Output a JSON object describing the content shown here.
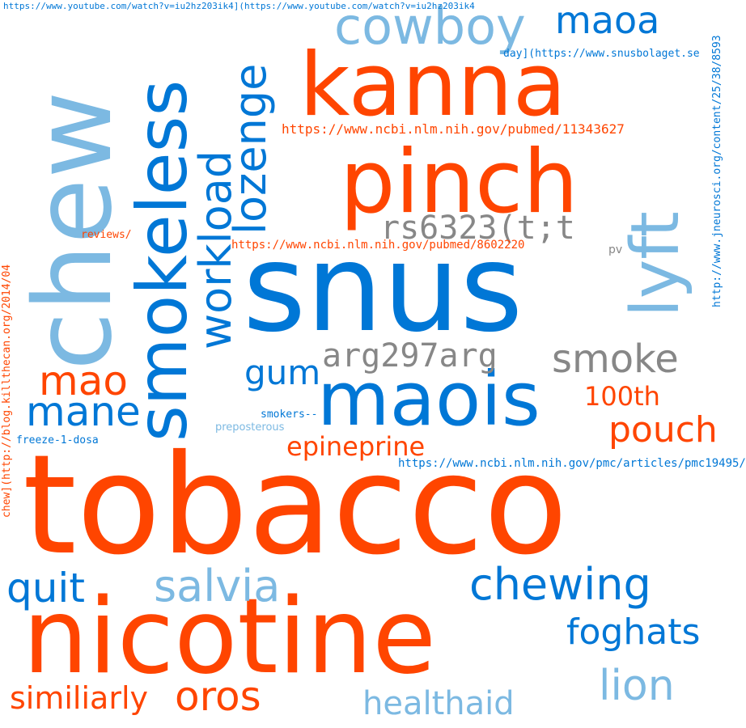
{
  "colors": {
    "orange": "#FF4500",
    "blue": "#0077D6",
    "light_blue": "#7CB9E2",
    "gray": "#878787"
  },
  "words": [
    {
      "text": "tobacco",
      "color": "orange",
      "weight": 1.0
    },
    {
      "text": "snus",
      "color": "blue",
      "weight": 0.78
    },
    {
      "text": "nicotine",
      "color": "orange",
      "weight": 0.72
    },
    {
      "text": "chew",
      "color": "light_blue",
      "weight": 0.7
    },
    {
      "text": "kanna",
      "color": "orange",
      "weight": 0.6
    },
    {
      "text": "pinch",
      "color": "orange",
      "weight": 0.57
    },
    {
      "text": "maois",
      "color": "blue",
      "weight": 0.52
    },
    {
      "text": "smokeless",
      "color": "blue",
      "weight": 0.48
    },
    {
      "text": "lyft",
      "color": "light_blue",
      "weight": 0.42
    },
    {
      "text": "cowboy",
      "color": "light_blue",
      "weight": 0.32
    },
    {
      "text": "workload",
      "color": "blue",
      "weight": 0.3
    },
    {
      "text": "lozenge",
      "color": "blue",
      "weight": 0.3
    },
    {
      "text": "chewing",
      "color": "blue",
      "weight": 0.3
    },
    {
      "text": "salvia",
      "color": "light_blue",
      "weight": 0.3
    },
    {
      "text": "smoke",
      "color": "gray",
      "weight": 0.28
    },
    {
      "text": "rs6323(t;t",
      "color": "gray",
      "weight": 0.26
    },
    {
      "text": "arg297arg",
      "color": "gray",
      "weight": 0.24
    },
    {
      "text": "maoa",
      "color": "blue",
      "weight": 0.24
    },
    {
      "text": "mao",
      "color": "orange",
      "weight": 0.24
    },
    {
      "text": "quit",
      "color": "blue",
      "weight": 0.24
    },
    {
      "text": "mane",
      "color": "blue",
      "weight": 0.23
    },
    {
      "text": "lion",
      "color": "light_blue",
      "weight": 0.23
    },
    {
      "text": "oros",
      "color": "orange",
      "weight": 0.23
    },
    {
      "text": "foghats",
      "color": "blue",
      "weight": 0.23
    },
    {
      "text": "pouch",
      "color": "orange",
      "weight": 0.22
    },
    {
      "text": "gum",
      "color": "blue",
      "weight": 0.2
    },
    {
      "text": "healthaid",
      "color": "light_blue",
      "weight": 0.2
    },
    {
      "text": "similiarly",
      "color": "orange",
      "weight": 0.19
    },
    {
      "text": "epineprine",
      "color": "orange",
      "weight": 0.17
    },
    {
      "text": "100th",
      "color": "orange",
      "weight": 0.17
    },
    {
      "text": "https://www.ncbi.nlm.nih.gov/pubmed/11343627",
      "color": "orange",
      "weight": 0.08
    },
    {
      "text": "https://www.ncbi.nlm.nih.gov/pubmed/8602220",
      "color": "orange",
      "weight": 0.07
    },
    {
      "text": "https://www.ncbi.nlm.nih.gov/pmc/articles/pmc19495/",
      "color": "blue",
      "weight": 0.07
    },
    {
      "text": "https://www.youtube.com/watch?v=iu2hz203ik4](https://www.youtube.com/watch?v=iu2hz203ik4",
      "color": "blue",
      "weight": 0.06
    },
    {
      "text": "http://www.jneurosci.org/content/25/38/8593",
      "color": "blue",
      "weight": 0.07
    },
    {
      "text": "chew](http://blog.killthecan.org/2014/04",
      "color": "orange",
      "weight": 0.07
    },
    {
      "text": "day](https://www.snusbolaget.se",
      "color": "blue",
      "weight": 0.06
    },
    {
      "text": "smokers--",
      "color": "blue",
      "weight": 0.06
    },
    {
      "text": "preposterous",
      "color": "light_blue",
      "weight": 0.06
    },
    {
      "text": "freeze-1-dosa",
      "color": "blue",
      "weight": 0.06
    },
    {
      "text": "reviews/",
      "color": "orange",
      "weight": 0.06
    },
    {
      "text": "pv",
      "color": "gray",
      "weight": 0.06
    }
  ]
}
